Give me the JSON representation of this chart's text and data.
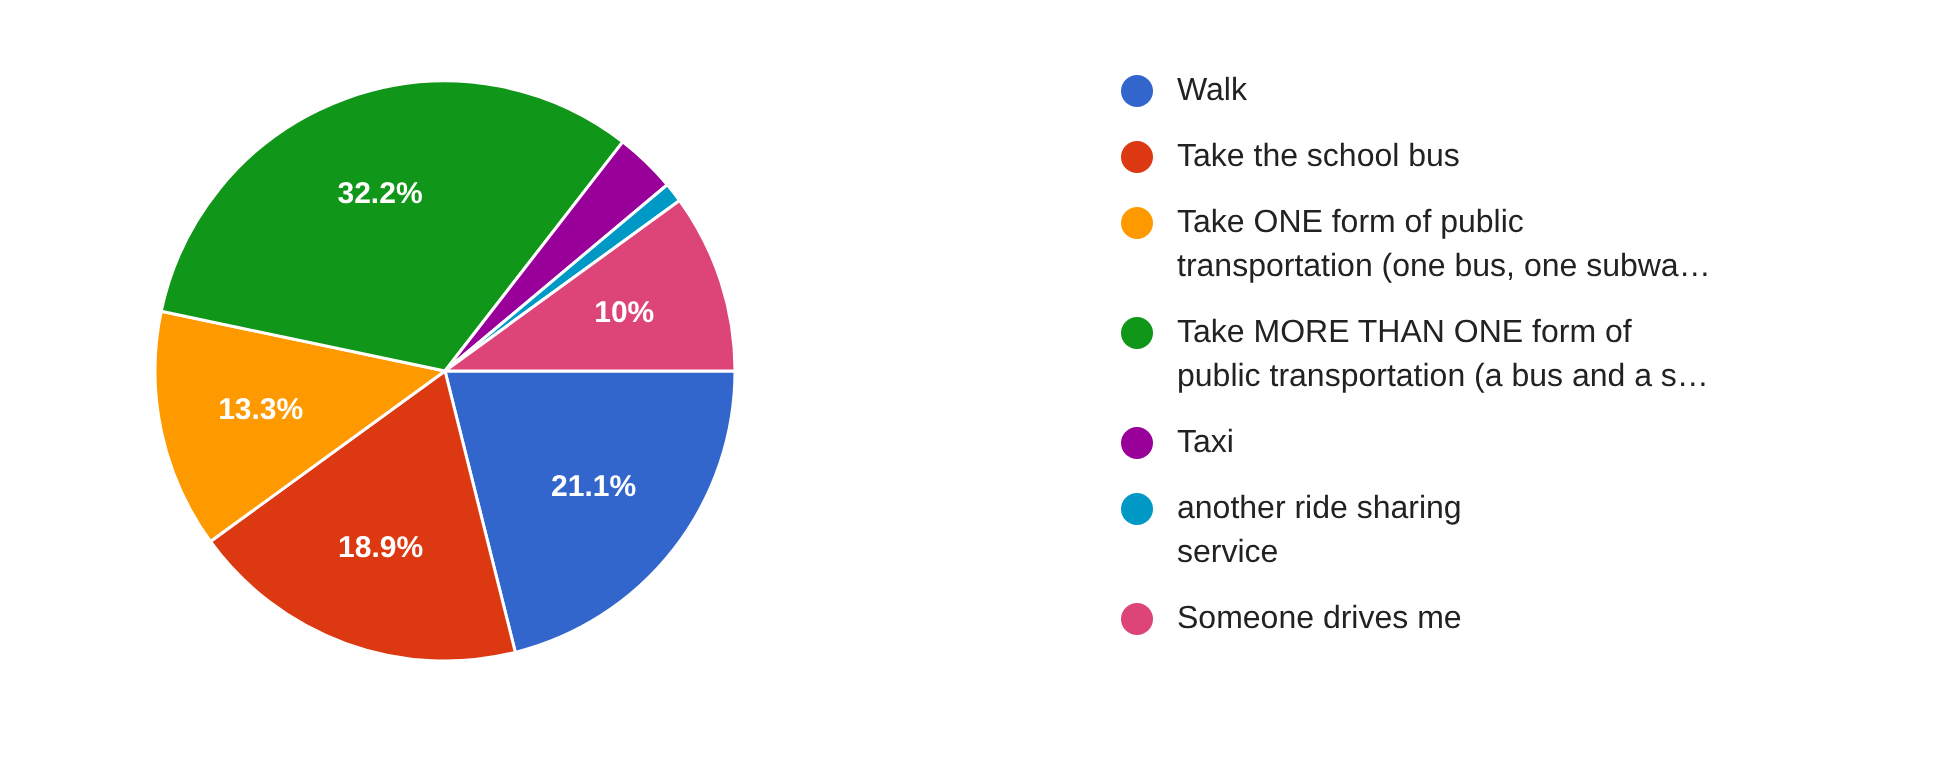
{
  "chart_data": {
    "type": "pie",
    "categories": [
      "Walk",
      "Take the school bus",
      "Take ONE form of public\ntransportation (one bus, one subwa…",
      "Take MORE THAN ONE form of\npublic transportation (a bus and a s…",
      "Taxi",
      "another ride sharing\nservice",
      "Someone drives me"
    ],
    "values": [
      21.1,
      18.9,
      13.3,
      32.2,
      3.4,
      1.1,
      10
    ],
    "colors": [
      "#3366cc",
      "#dc3912",
      "#ff9900",
      "#109618",
      "#990099",
      "#0099c6",
      "#dd4477"
    ],
    "value_labels": [
      "21.1%",
      "18.9%",
      "13.3%",
      "32.2%",
      null,
      null,
      "10%"
    ],
    "legend": "right"
  }
}
